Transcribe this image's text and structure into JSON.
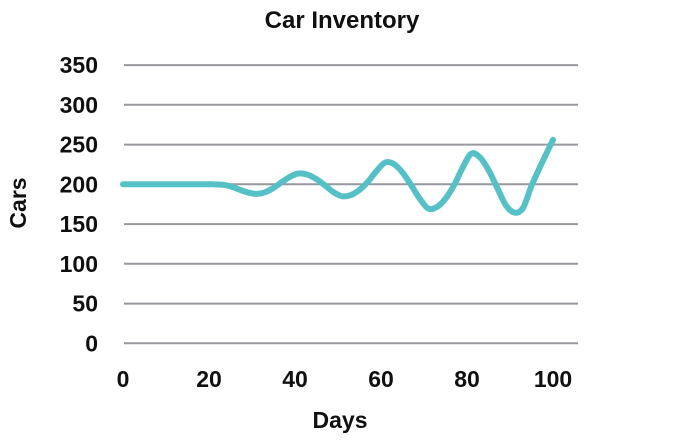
{
  "chart_data": {
    "type": "line",
    "title": "Car Inventory",
    "xlabel": "Days",
    "ylabel": "Cars",
    "xlim": [
      0,
      100
    ],
    "ylim": [
      0,
      350
    ],
    "x_ticks": [
      0,
      20,
      40,
      60,
      80,
      100
    ],
    "y_ticks": [
      0,
      50,
      100,
      150,
      200,
      250,
      300,
      350
    ],
    "grid": "horizontal",
    "legend": "none",
    "background": "#FFFFFF",
    "line_color": "#55C1C7",
    "grid_color": "#96989D",
    "text_color": "#101010",
    "series": [
      {
        "name": "Cars",
        "x": [
          0,
          8,
          16,
          21,
          23,
          25,
          27,
          29,
          31,
          33,
          35,
          37,
          39,
          41,
          43,
          45,
          47,
          49,
          51,
          53,
          55,
          57,
          59,
          61,
          63,
          65,
          67,
          69,
          71,
          73,
          75,
          77,
          79,
          81,
          83,
          85,
          87,
          89,
          91,
          93,
          95,
          97,
          99,
          100
        ],
        "y": [
          200,
          200,
          200,
          200,
          199.5,
          197.5,
          193.5,
          189.8,
          188,
          190,
          195.5,
          203,
          210,
          213.8,
          212,
          206.5,
          198.5,
          190,
          185,
          186.5,
          193,
          203.5,
          217,
          227.5,
          225.5,
          215,
          199,
          182,
          169.5,
          171.5,
          182,
          199,
          221,
          238.5,
          234,
          218,
          196,
          174,
          164.5,
          170,
          198,
          222,
          245,
          256
        ]
      }
    ],
    "key_points": {
      "flat_value_until_day": 22,
      "minima": [
        [
          31,
          188
        ],
        [
          51,
          185
        ],
        [
          71,
          169
        ],
        [
          91,
          164.5
        ]
      ],
      "maxima": [
        [
          41,
          214
        ],
        [
          61,
          228
        ],
        [
          81,
          239
        ]
      ],
      "end_value": [
        100,
        256
      ]
    }
  }
}
